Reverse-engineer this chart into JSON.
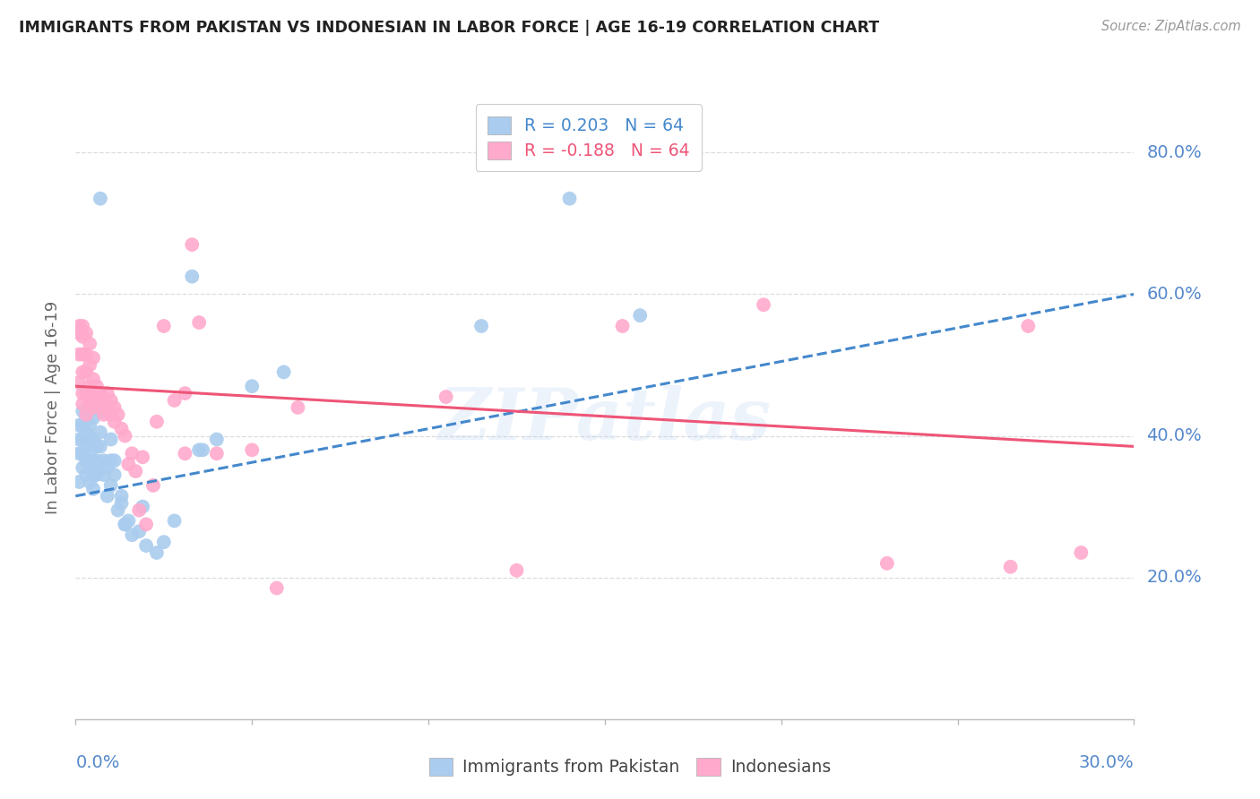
{
  "title": "IMMIGRANTS FROM PAKISTAN VS INDONESIAN IN LABOR FORCE | AGE 16-19 CORRELATION CHART",
  "source": "Source: ZipAtlas.com",
  "ylabel": "In Labor Force | Age 16-19",
  "legend_entries": [
    {
      "label": "R = 0.203   N = 64",
      "color": "#99bbee"
    },
    {
      "label": "R = -0.188   N = 64",
      "color": "#ffaabb"
    }
  ],
  "legend_item_labels": [
    "Immigrants from Pakistan",
    "Indonesians"
  ],
  "watermark": "ZIPatlas",
  "pakistan_scatter": [
    [
      0.001,
      0.335
    ],
    [
      0.001,
      0.375
    ],
    [
      0.001,
      0.395
    ],
    [
      0.001,
      0.415
    ],
    [
      0.002,
      0.355
    ],
    [
      0.002,
      0.375
    ],
    [
      0.002,
      0.395
    ],
    [
      0.002,
      0.415
    ],
    [
      0.002,
      0.435
    ],
    [
      0.003,
      0.345
    ],
    [
      0.003,
      0.365
    ],
    [
      0.003,
      0.385
    ],
    [
      0.003,
      0.405
    ],
    [
      0.003,
      0.425
    ],
    [
      0.004,
      0.335
    ],
    [
      0.004,
      0.355
    ],
    [
      0.004,
      0.375
    ],
    [
      0.004,
      0.395
    ],
    [
      0.004,
      0.415
    ],
    [
      0.004,
      0.435
    ],
    [
      0.005,
      0.325
    ],
    [
      0.005,
      0.345
    ],
    [
      0.005,
      0.365
    ],
    [
      0.005,
      0.395
    ],
    [
      0.005,
      0.425
    ],
    [
      0.006,
      0.345
    ],
    [
      0.006,
      0.365
    ],
    [
      0.006,
      0.385
    ],
    [
      0.007,
      0.355
    ],
    [
      0.007,
      0.385
    ],
    [
      0.007,
      0.405
    ],
    [
      0.007,
      0.435
    ],
    [
      0.008,
      0.345
    ],
    [
      0.008,
      0.365
    ],
    [
      0.009,
      0.315
    ],
    [
      0.009,
      0.355
    ],
    [
      0.01,
      0.33
    ],
    [
      0.01,
      0.365
    ],
    [
      0.01,
      0.395
    ],
    [
      0.011,
      0.345
    ],
    [
      0.011,
      0.365
    ],
    [
      0.012,
      0.295
    ],
    [
      0.013,
      0.305
    ],
    [
      0.013,
      0.315
    ],
    [
      0.014,
      0.275
    ],
    [
      0.014,
      0.275
    ],
    [
      0.015,
      0.28
    ],
    [
      0.016,
      0.26
    ],
    [
      0.018,
      0.265
    ],
    [
      0.019,
      0.3
    ],
    [
      0.02,
      0.245
    ],
    [
      0.023,
      0.235
    ],
    [
      0.025,
      0.25
    ],
    [
      0.028,
      0.28
    ],
    [
      0.033,
      0.625
    ],
    [
      0.035,
      0.38
    ],
    [
      0.036,
      0.38
    ],
    [
      0.04,
      0.395
    ],
    [
      0.05,
      0.47
    ],
    [
      0.059,
      0.49
    ],
    [
      0.115,
      0.555
    ],
    [
      0.16,
      0.57
    ],
    [
      0.14,
      0.735
    ],
    [
      0.007,
      0.735
    ]
  ],
  "indonesian_scatter": [
    [
      0.001,
      0.475
    ],
    [
      0.001,
      0.515
    ],
    [
      0.001,
      0.545
    ],
    [
      0.001,
      0.555
    ],
    [
      0.002,
      0.445
    ],
    [
      0.002,
      0.46
    ],
    [
      0.002,
      0.49
    ],
    [
      0.002,
      0.515
    ],
    [
      0.002,
      0.54
    ],
    [
      0.002,
      0.555
    ],
    [
      0.003,
      0.43
    ],
    [
      0.003,
      0.46
    ],
    [
      0.003,
      0.49
    ],
    [
      0.003,
      0.515
    ],
    [
      0.003,
      0.545
    ],
    [
      0.004,
      0.445
    ],
    [
      0.004,
      0.47
    ],
    [
      0.004,
      0.5
    ],
    [
      0.004,
      0.53
    ],
    [
      0.005,
      0.44
    ],
    [
      0.005,
      0.46
    ],
    [
      0.005,
      0.48
    ],
    [
      0.005,
      0.51
    ],
    [
      0.006,
      0.45
    ],
    [
      0.006,
      0.47
    ],
    [
      0.007,
      0.44
    ],
    [
      0.007,
      0.46
    ],
    [
      0.008,
      0.43
    ],
    [
      0.008,
      0.45
    ],
    [
      0.009,
      0.44
    ],
    [
      0.009,
      0.46
    ],
    [
      0.01,
      0.43
    ],
    [
      0.01,
      0.45
    ],
    [
      0.011,
      0.42
    ],
    [
      0.011,
      0.44
    ],
    [
      0.012,
      0.43
    ],
    [
      0.013,
      0.41
    ],
    [
      0.014,
      0.4
    ],
    [
      0.015,
      0.36
    ],
    [
      0.016,
      0.375
    ],
    [
      0.017,
      0.35
    ],
    [
      0.018,
      0.295
    ],
    [
      0.019,
      0.37
    ],
    [
      0.02,
      0.275
    ],
    [
      0.022,
      0.33
    ],
    [
      0.023,
      0.42
    ],
    [
      0.025,
      0.555
    ],
    [
      0.028,
      0.45
    ],
    [
      0.031,
      0.46
    ],
    [
      0.031,
      0.375
    ],
    [
      0.033,
      0.67
    ],
    [
      0.035,
      0.56
    ],
    [
      0.04,
      0.375
    ],
    [
      0.05,
      0.38
    ],
    [
      0.057,
      0.185
    ],
    [
      0.063,
      0.44
    ],
    [
      0.105,
      0.455
    ],
    [
      0.125,
      0.21
    ],
    [
      0.155,
      0.555
    ],
    [
      0.195,
      0.585
    ],
    [
      0.23,
      0.22
    ],
    [
      0.265,
      0.215
    ],
    [
      0.27,
      0.555
    ],
    [
      0.285,
      0.235
    ]
  ],
  "pakistan_line_x": [
    0.0,
    0.3
  ],
  "pakistan_line_y": [
    0.315,
    0.6
  ],
  "indonesian_line_x": [
    0.0,
    0.3
  ],
  "indonesian_line_y": [
    0.47,
    0.385
  ],
  "xlim": [
    0.0,
    0.3
  ],
  "ylim": [
    0.0,
    0.88
  ],
  "yticks": [
    0.2,
    0.4,
    0.6,
    0.8
  ],
  "ytick_labels": [
    "20.0%",
    "40.0%",
    "60.0%",
    "80.0%"
  ],
  "xtick_positions": [
    0.0,
    0.05,
    0.1,
    0.15,
    0.2,
    0.25,
    0.3
  ],
  "title_color": "#222222",
  "source_color": "#999999",
  "pakistan_color": "#aaccee",
  "indonesian_color": "#ffaacc",
  "pakistan_line_color": "#4488cc",
  "indonesian_line_color": "#ee5577",
  "ytick_color": "#5588cc",
  "xtick_color": "#5588cc",
  "grid_color": "#dddddd",
  "background_color": "#ffffff"
}
